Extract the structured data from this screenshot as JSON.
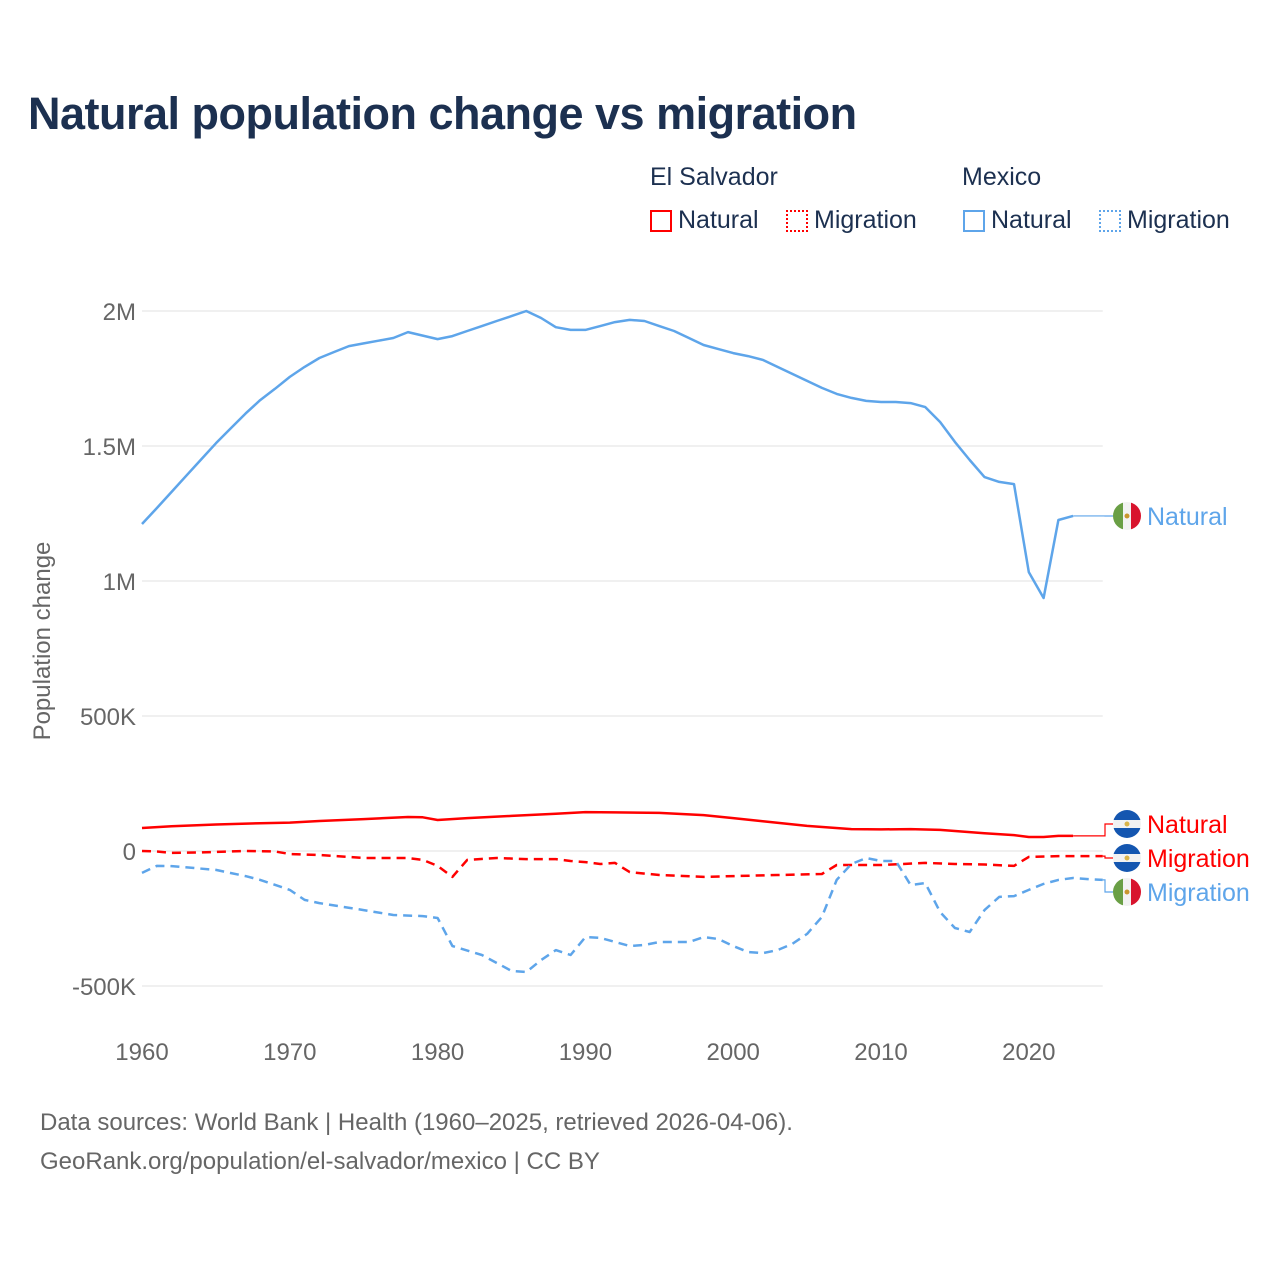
{
  "chart_data": {
    "type": "line",
    "title": "Natural population change vs migration",
    "ylabel": "Population change",
    "xlabel": "",
    "xlim": [
      1960,
      2025
    ],
    "ylim": [
      -500000,
      2000000
    ],
    "x_ticks": [
      "1960",
      "1970",
      "1980",
      "1990",
      "2000",
      "2010",
      "2020"
    ],
    "x_tick_values": [
      1960,
      1970,
      1980,
      1990,
      2000,
      2010,
      2020
    ],
    "y_ticks": [
      "-500K",
      "0",
      "500K",
      "1M",
      "1.5M",
      "2M"
    ],
    "y_tick_values": [
      -500000,
      0,
      500000,
      1000000,
      1500000,
      2000000
    ],
    "grid": true,
    "legend": {
      "placement": "top-right",
      "groups": [
        {
          "name": "El Salvador",
          "items": [
            "Natural",
            "Migration"
          ]
        },
        {
          "name": "Mexico",
          "items": [
            "Natural",
            "Migration"
          ]
        }
      ]
    },
    "colors": {
      "el_salvador": "#ff0000",
      "mexico": "#5ea5ea"
    },
    "series": [
      {
        "name": "Mexico Natural",
        "country": "Mexico",
        "kind": "Natural",
        "style": "solid",
        "color": "#5ea5ea",
        "end_label": "Natural",
        "x": [
          1960,
          1961,
          1962,
          1963,
          1964,
          1965,
          1966,
          1967,
          1968,
          1969,
          1970,
          1971,
          1972,
          1973,
          1974,
          1975,
          1976,
          1977,
          1978,
          1979,
          1980,
          1981,
          1982,
          1983,
          1984,
          1985,
          1986,
          1987,
          1988,
          1989,
          1990,
          1991,
          1992,
          1993,
          1994,
          1995,
          1996,
          1997,
          1998,
          1999,
          2000,
          2001,
          2002,
          2003,
          2004,
          2005,
          2006,
          2007,
          2008,
          2009,
          2010,
          2011,
          2012,
          2013,
          2014,
          2015,
          2016,
          2017,
          2018,
          2019,
          2020,
          2021,
          2022,
          2023
        ],
        "values": [
          1211000,
          1270000,
          1330000,
          1390000,
          1450000,
          1510000,
          1565000,
          1620000,
          1670000,
          1712000,
          1756000,
          1793000,
          1826000,
          1848000,
          1870000,
          1880000,
          1890000,
          1900000,
          1922000,
          1909000,
          1896000,
          1907000,
          1926000,
          1944000,
          1963000,
          1981000,
          2000000,
          1974000,
          1940000,
          1930000,
          1930000,
          1944000,
          1959000,
          1967000,
          1963000,
          1944000,
          1926000,
          1900000,
          1874000,
          1859000,
          1844000,
          1833000,
          1819000,
          1793000,
          1767000,
          1741000,
          1715000,
          1693000,
          1678000,
          1667000,
          1663000,
          1663000,
          1659000,
          1644000,
          1589000,
          1515000,
          1448000,
          1385000,
          1367000,
          1359000,
          1033000,
          937000,
          1226000,
          1241000
        ]
      },
      {
        "name": "El Salvador Natural",
        "country": "El Salvador",
        "kind": "Natural",
        "style": "solid",
        "color": "#ff0000",
        "end_label": "Natural",
        "x": [
          1960,
          1962,
          1965,
          1968,
          1970,
          1972,
          1975,
          1978,
          1979,
          1980,
          1982,
          1985,
          1988,
          1990,
          1992,
          1995,
          1998,
          2000,
          2002,
          2005,
          2008,
          2010,
          2012,
          2014,
          2016,
          2017,
          2019,
          2020,
          2021,
          2022,
          2023
        ],
        "values": [
          85000,
          92000,
          98000,
          103000,
          105000,
          111000,
          118000,
          126000,
          125000,
          115000,
          122000,
          130000,
          138000,
          144000,
          143000,
          141000,
          133000,
          122000,
          110000,
          93000,
          81000,
          80000,
          81000,
          78000,
          70000,
          66000,
          59000,
          52000,
          52000,
          56000,
          56000
        ]
      },
      {
        "name": "El Salvador Migration",
        "country": "El Salvador",
        "kind": "Migration",
        "style": "dashed",
        "color": "#ff0000",
        "end_label": "Migration",
        "x": [
          1960,
          1961,
          1962,
          1964,
          1967,
          1969,
          1970,
          1972,
          1975,
          1978,
          1979,
          1980,
          1981,
          1982,
          1984,
          1986,
          1988,
          1989,
          1990,
          1991,
          1992,
          1993,
          1995,
          1998,
          2000,
          2003,
          2006,
          2007,
          2010,
          2013,
          2015,
          2017,
          2019,
          2020,
          2022,
          2025
        ],
        "values": [
          0,
          -2000,
          -7000,
          -5000,
          0,
          -2000,
          -11000,
          -15000,
          -26000,
          -26000,
          -33000,
          -55000,
          -96000,
          -33000,
          -26000,
          -30000,
          -30000,
          -37000,
          -41000,
          -48000,
          -44000,
          -78000,
          -89000,
          -96000,
          -93000,
          -89000,
          -85000,
          -52000,
          -52000,
          -44000,
          -48000,
          -50000,
          -55000,
          -22000,
          -19000,
          -19000
        ]
      },
      {
        "name": "Mexico Migration",
        "country": "Mexico",
        "kind": "Migration",
        "style": "dashed",
        "color": "#5ea5ea",
        "end_label": "Migration",
        "x": [
          1960,
          1961,
          1962,
          1965,
          1967,
          1968,
          1970,
          1971,
          1972,
          1975,
          1977,
          1979,
          1980,
          1981,
          1983,
          1985,
          1986,
          1987,
          1988,
          1989,
          1990,
          1991,
          1993,
          1994,
          1995,
          1997,
          1998,
          1999,
          2000,
          2001,
          2002,
          2003,
          2004,
          2005,
          2006,
          2007,
          2008,
          2009,
          2010,
          2011,
          2012,
          2013,
          2014,
          2015,
          2016,
          2017,
          2018,
          2019,
          2020,
          2021,
          2022,
          2023,
          2024,
          2025
        ],
        "values": [
          -81000,
          -55000,
          -56000,
          -70000,
          -93000,
          -107000,
          -144000,
          -181000,
          -193000,
          -219000,
          -237000,
          -241000,
          -248000,
          -352000,
          -385000,
          -444000,
          -448000,
          -404000,
          -367000,
          -385000,
          -319000,
          -322000,
          -352000,
          -348000,
          -337000,
          -337000,
          -319000,
          -326000,
          -352000,
          -374000,
          -378000,
          -367000,
          -344000,
          -307000,
          -244000,
          -107000,
          -48000,
          -26000,
          -37000,
          -37000,
          -126000,
          -119000,
          -226000,
          -285000,
          -300000,
          -219000,
          -170000,
          -167000,
          -144000,
          -122000,
          -107000,
          -100000,
          -104000,
          -107000
        ]
      }
    ]
  },
  "footer": {
    "line1": "Data sources: World Bank | Health (1960–2025, retrieved 2026-04-06).",
    "line2": "GeoRank.org/population/el-salvador/mexico | CC BY"
  }
}
